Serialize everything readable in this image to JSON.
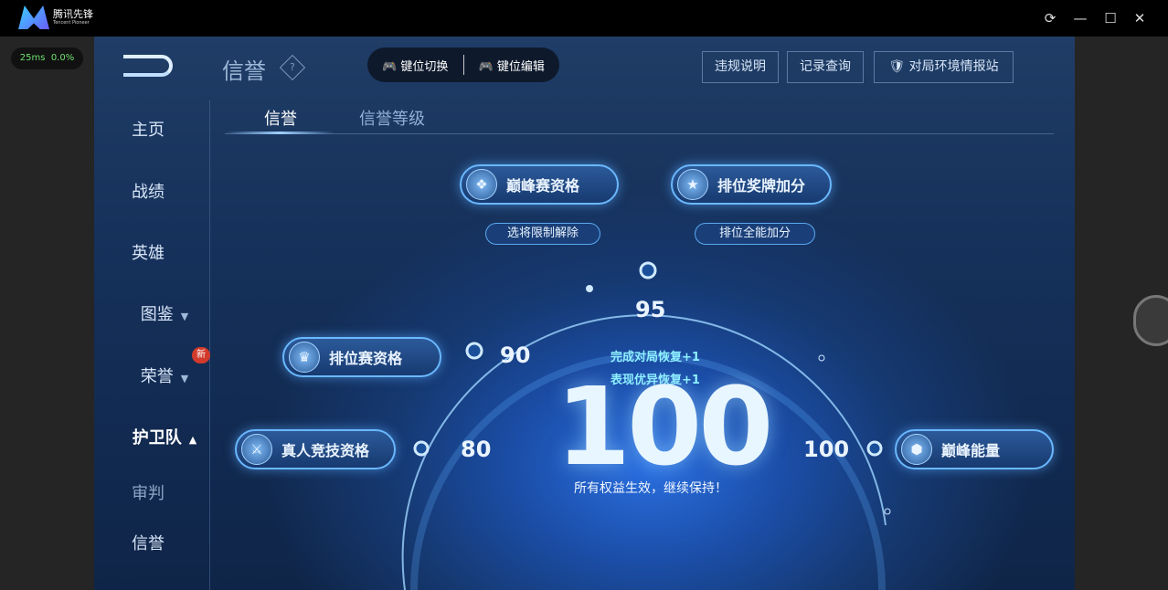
{
  "app": {
    "name": "腾讯先锋",
    "subtitle": "Tencent Pioneer",
    "refresh_icon": "refresh-icon",
    "min_icon": "minimize-icon",
    "max_icon": "maximize-icon",
    "close_icon": "close-icon"
  },
  "perf": {
    "latency": "25ms",
    "loss": "0.0%"
  },
  "header": {
    "title": "信誉",
    "keys": [
      "键位切换",
      "键位编辑"
    ],
    "buttons": [
      "违规说明",
      "记录查询",
      "对局环境情报站"
    ]
  },
  "sidebar": {
    "items": [
      {
        "label": "主页"
      },
      {
        "label": "战绩"
      },
      {
        "label": "英雄"
      },
      {
        "label": "图鉴"
      },
      {
        "label": "荣誉",
        "badge": "新"
      },
      {
        "label": "护卫队"
      },
      {
        "label": "审判"
      },
      {
        "label": "信誉"
      }
    ]
  },
  "tabs": [
    {
      "label": "信誉",
      "active": true
    },
    {
      "label": "信誉等级",
      "active": false
    }
  ],
  "perks": {
    "peak": "巅峰赛资格",
    "peak_sub": "选将限制解除",
    "medal": "排位奖牌加分",
    "medal_sub": "排位全能加分",
    "ranked": "排位赛资格",
    "human": "真人竞技资格",
    "energy": "巅峰能量"
  },
  "thresholds": [
    "80",
    "90",
    "95",
    "100"
  ],
  "score": {
    "value": "100",
    "bonus1": "完成对局恢复+1",
    "bonus2": "表现优异恢复+1",
    "status": "所有权益生效，继续保持！"
  },
  "colors": {
    "accent": "#6ab8ff",
    "bonus": "#8ef0ff",
    "badge": "#d23a2c"
  }
}
